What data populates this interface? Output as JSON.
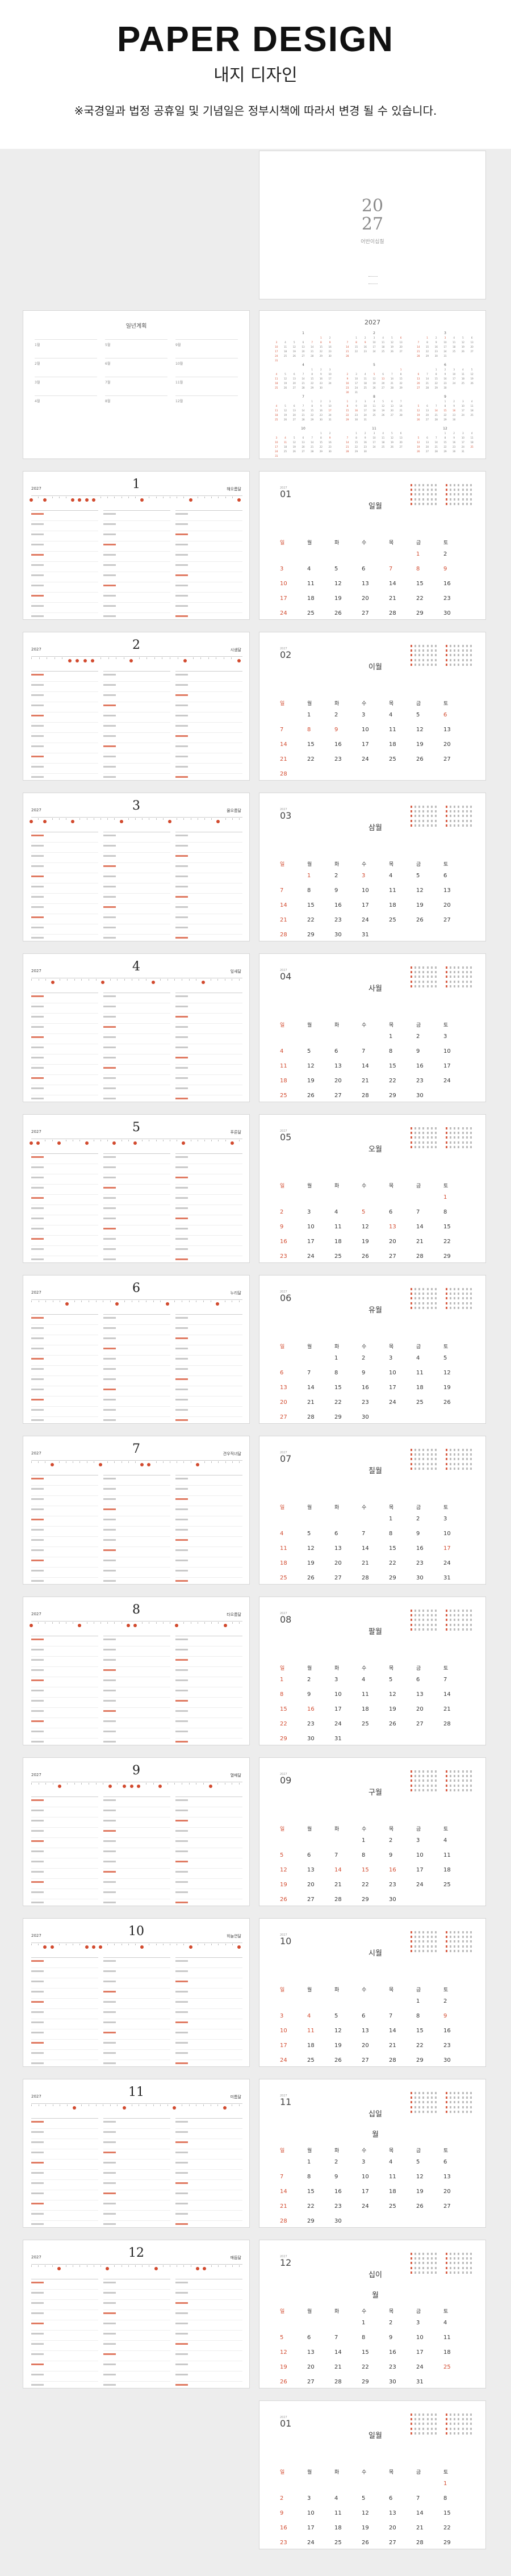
{
  "header": {
    "title": "PAPER DESIGN",
    "subtitle": "내지 디자인",
    "notice": "※국경일과 법정 공휴일 및 기념일은 정부시책에 따라서 변경 될 수 있습니다."
  },
  "cover": {
    "year_top": "20",
    "year_bottom": "27",
    "label": "어반이십칠"
  },
  "yearly_plan": {
    "title": "일년계획"
  },
  "year_overview": {
    "title": "2027"
  },
  "planner_year": "2027",
  "months": [
    {
      "num": "1",
      "pad": "01",
      "name_left": "해오름달",
      "name_right": "일월",
      "start": 5,
      "days": 31,
      "holidays": [
        1,
        7,
        8,
        9
      ]
    },
    {
      "num": "2",
      "pad": "02",
      "name_left": "시샘달",
      "name_right": "이월",
      "start": 1,
      "days": 28,
      "holidays": [
        6,
        7,
        8,
        9
      ]
    },
    {
      "num": "3",
      "pad": "03",
      "name_left": "물오름달",
      "name_right": "삼월",
      "start": 1,
      "days": 31,
      "holidays": [
        1,
        3
      ]
    },
    {
      "num": "4",
      "pad": "04",
      "name_left": "잎새달",
      "name_right": "사월",
      "start": 4,
      "days": 30,
      "holidays": []
    },
    {
      "num": "5",
      "pad": "05",
      "name_left": "푸른달",
      "name_right": "오월",
      "start": 6,
      "days": 31,
      "holidays": [
        1,
        5,
        13
      ]
    },
    {
      "num": "6",
      "pad": "06",
      "name_left": "누리달",
      "name_right": "유월",
      "start": 2,
      "days": 30,
      "holidays": [
        6
      ]
    },
    {
      "num": "7",
      "pad": "07",
      "name_left": "견우직녀달",
      "name_right": "칠월",
      "start": 4,
      "days": 31,
      "holidays": [
        17
      ]
    },
    {
      "num": "8",
      "pad": "08",
      "name_left": "타오름달",
      "name_right": "팔월",
      "start": 0,
      "days": 31,
      "holidays": [
        15,
        16
      ]
    },
    {
      "num": "9",
      "pad": "09",
      "name_left": "열매달",
      "name_right": "구월",
      "start": 3,
      "days": 30,
      "holidays": [
        14,
        15,
        16
      ]
    },
    {
      "num": "10",
      "pad": "10",
      "name_left": "하늘연달",
      "name_right": "시월",
      "start": 5,
      "days": 31,
      "holidays": [
        3,
        4,
        9,
        11
      ]
    },
    {
      "num": "11",
      "pad": "11",
      "name_left": "미틈달",
      "name_right": "십일월",
      "start": 1,
      "days": 30,
      "holidays": []
    },
    {
      "num": "12",
      "pad": "12",
      "name_left": "매듭달",
      "name_right": "십이월",
      "start": 3,
      "days": 31,
      "holidays": [
        25
      ]
    }
  ],
  "weekdays": [
    "일",
    "월",
    "화",
    "수",
    "목",
    "금",
    "토"
  ],
  "next_year_jan": {
    "pad": "01",
    "name_right": "일월",
    "start": 6,
    "days": 31,
    "holidays": [
      1
    ]
  },
  "plan_labels": [
    "1월",
    "2월",
    "3월",
    "4월",
    "5월",
    "6월",
    "7월",
    "8월",
    "9월",
    "10월",
    "11월",
    "12월"
  ],
  "colors": {
    "accent": "#d24a2e"
  }
}
